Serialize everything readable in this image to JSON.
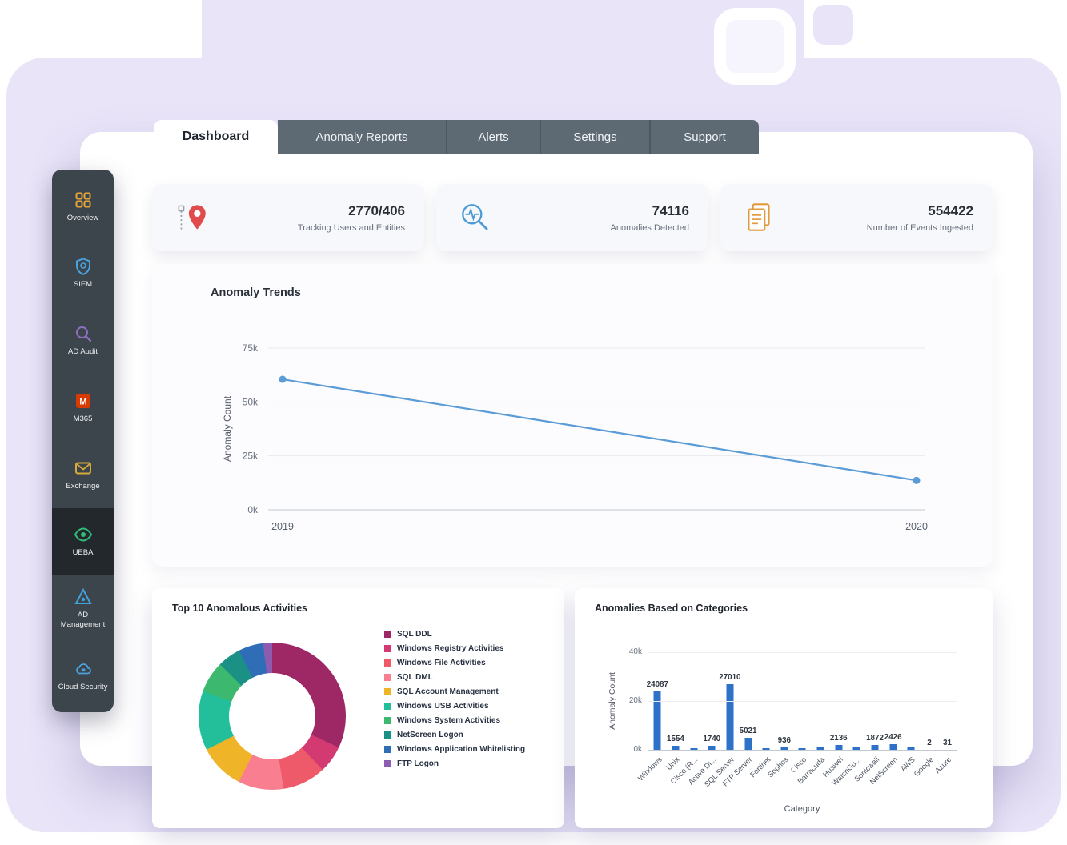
{
  "tabs": [
    {
      "label": "Dashboard",
      "active": true
    },
    {
      "label": "Anomaly Reports",
      "active": false
    },
    {
      "label": "Alerts",
      "active": false
    },
    {
      "label": "Settings",
      "active": false
    },
    {
      "label": "Support",
      "active": false
    }
  ],
  "sidebar": {
    "items": [
      {
        "label": "Overview",
        "icon": "grid-icon",
        "active": false
      },
      {
        "label": "SIEM",
        "icon": "shield-icon",
        "active": false
      },
      {
        "label": "AD Audit",
        "icon": "audit-search-icon",
        "active": false
      },
      {
        "label": "M365",
        "icon": "m365-icon",
        "active": false
      },
      {
        "label": "Exchange",
        "icon": "envelope-icon",
        "active": false
      },
      {
        "label": "UEBA",
        "icon": "eye-icon",
        "active": true
      },
      {
        "label": "AD Management",
        "icon": "ad-management-icon",
        "active": false
      },
      {
        "label": "Cloud Security",
        "icon": "cloud-lock-icon",
        "active": false
      }
    ]
  },
  "stat_cards": [
    {
      "icon": "tracking-route-icon",
      "value": "2770/406",
      "label": "Tracking Users and Entities"
    },
    {
      "icon": "anomaly-search-icon",
      "value": "74116",
      "label": "Anomalies Detected"
    },
    {
      "icon": "events-documents-icon",
      "value": "554422",
      "label": "Number of Events Ingested"
    }
  ],
  "chart_data": [
    {
      "type": "line",
      "title": "Anomaly Trends",
      "ylabel": "Anomaly Count",
      "x": [
        "2019",
        "2020"
      ],
      "values": [
        60500,
        13616
      ],
      "yticks": [
        "0k",
        "25k",
        "50k",
        "75k"
      ],
      "ylim": [
        0,
        75000
      ],
      "grid": true,
      "line_color": "#5b9cd6"
    },
    {
      "type": "donut",
      "title": "Top 10 Anomalous Activities",
      "legend_position": "right",
      "segments": [
        {
          "label": "SQL DDL",
          "value": 32,
          "color": "#9e2766"
        },
        {
          "label": "Windows Registry Activities",
          "value": 6,
          "color": "#d23a71"
        },
        {
          "label": "Windows File Activities",
          "value": 9.5,
          "color": "#ee5a6a"
        },
        {
          "label": "SQL DML",
          "value": 10,
          "color": "#f97e8f"
        },
        {
          "label": "SQL Account Management",
          "value": 10,
          "color": "#f0b429"
        },
        {
          "label": "Windows USB Activities",
          "value": 13,
          "color": "#23bf9a"
        },
        {
          "label": "Windows System Activities",
          "value": 7,
          "color": "#3cb96e"
        },
        {
          "label": "NetScreen Logon",
          "value": 5,
          "color": "#1b9186"
        },
        {
          "label": "Windows Application Whitelisting",
          "value": 5.5,
          "color": "#2f6db6"
        },
        {
          "label": "FTP Logon",
          "value": 2,
          "color": "#8d5bb0"
        }
      ]
    },
    {
      "type": "bar",
      "title": "Anomalies Based on Categories",
      "xlabel": "Category",
      "ylabel": "Anomaly Count",
      "yticks": [
        "0k",
        "20k",
        "40k"
      ],
      "ylim": [
        0,
        40000
      ],
      "bar_color": "#2d72c8",
      "categories": [
        "Windows",
        "Unix",
        "Cisco (R...",
        "Active Di...",
        "SQL Server",
        "FTP Server",
        "Fortinet",
        "Sophos",
        "Cisco",
        "Barracuda",
        "Huawei",
        "WatchGu...",
        "Sonicwall",
        "NetScreen",
        "AWS",
        "Google",
        "Azure"
      ],
      "values": [
        24087,
        1554,
        700,
        1740,
        27010,
        5021,
        650,
        936,
        800,
        1300,
        2136,
        1250,
        1872,
        2426,
        900,
        2,
        31
      ],
      "bar_labels": [
        "24087",
        "1554",
        "",
        "1740",
        "27010",
        "5021",
        "",
        "936",
        "",
        "",
        "2136",
        "",
        "1872",
        "2426",
        "",
        "2",
        "31"
      ]
    }
  ]
}
